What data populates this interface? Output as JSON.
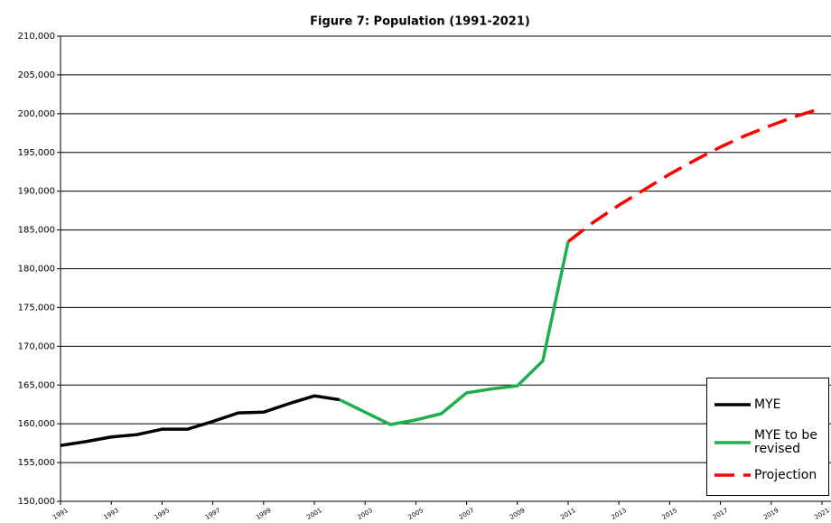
{
  "chart_data": {
    "type": "line",
    "title": "Figure 7: Population (1991-2021)",
    "x": [
      1991,
      1992,
      1993,
      1994,
      1995,
      1996,
      1997,
      1998,
      1999,
      2000,
      2001,
      2002,
      2003,
      2004,
      2005,
      2006,
      2007,
      2008,
      2009,
      2010,
      2011,
      2012,
      2013,
      2014,
      2015,
      2016,
      2017,
      2018,
      2019,
      2020,
      2021
    ],
    "series": [
      {
        "name": "MYE",
        "color": "#000000",
        "dashed": false,
        "values": [
          157200,
          157700,
          158300,
          158600,
          159300,
          159300,
          160300,
          161400,
          161500,
          162600,
          163600,
          163100,
          null,
          null,
          null,
          null,
          null,
          null,
          null,
          null,
          null,
          null,
          null,
          null,
          null,
          null,
          null,
          null,
          null,
          null,
          null
        ]
      },
      {
        "name": "MYE to be revised",
        "color": "#1fb04c",
        "dashed": false,
        "values": [
          null,
          null,
          null,
          null,
          null,
          null,
          null,
          null,
          null,
          null,
          null,
          163100,
          161500,
          159900,
          160500,
          161300,
          164000,
          164500,
          164900,
          168100,
          183500,
          null,
          null,
          null,
          null,
          null,
          null,
          null,
          null,
          null,
          null
        ]
      },
      {
        "name": "Projection",
        "color": "#ff0000",
        "dashed": true,
        "values": [
          null,
          null,
          null,
          null,
          null,
          null,
          null,
          null,
          null,
          null,
          null,
          null,
          null,
          null,
          null,
          null,
          null,
          null,
          null,
          null,
          183500,
          186000,
          188200,
          190200,
          192200,
          194000,
          195700,
          197200,
          198500,
          199700,
          200700
        ]
      }
    ],
    "xlim": [
      1991,
      2021
    ],
    "xticks": [
      1991,
      1993,
      1995,
      1997,
      1999,
      2001,
      2003,
      2005,
      2007,
      2009,
      2011,
      2013,
      2015,
      2017,
      2019,
      2021
    ],
    "ylim": [
      150000,
      210000
    ],
    "yticks": [
      {
        "value": 150000,
        "label": "150,000"
      },
      {
        "value": 155000,
        "label": "155,000"
      },
      {
        "value": 160000,
        "label": "160,000"
      },
      {
        "value": 165000,
        "label": "165,000"
      },
      {
        "value": 170000,
        "label": "170,000"
      },
      {
        "value": 175000,
        "label": "175,000"
      },
      {
        "value": 180000,
        "label": "180,000"
      },
      {
        "value": 185000,
        "label": "185,000"
      },
      {
        "value": 190000,
        "label": "190,000"
      },
      {
        "value": 195000,
        "label": "195,000"
      },
      {
        "value": 200000,
        "label": "200,000"
      },
      {
        "value": 205000,
        "label": "205,000"
      },
      {
        "value": 210000,
        "label": "210,000"
      }
    ],
    "grid": true,
    "legend": "lower-right"
  }
}
